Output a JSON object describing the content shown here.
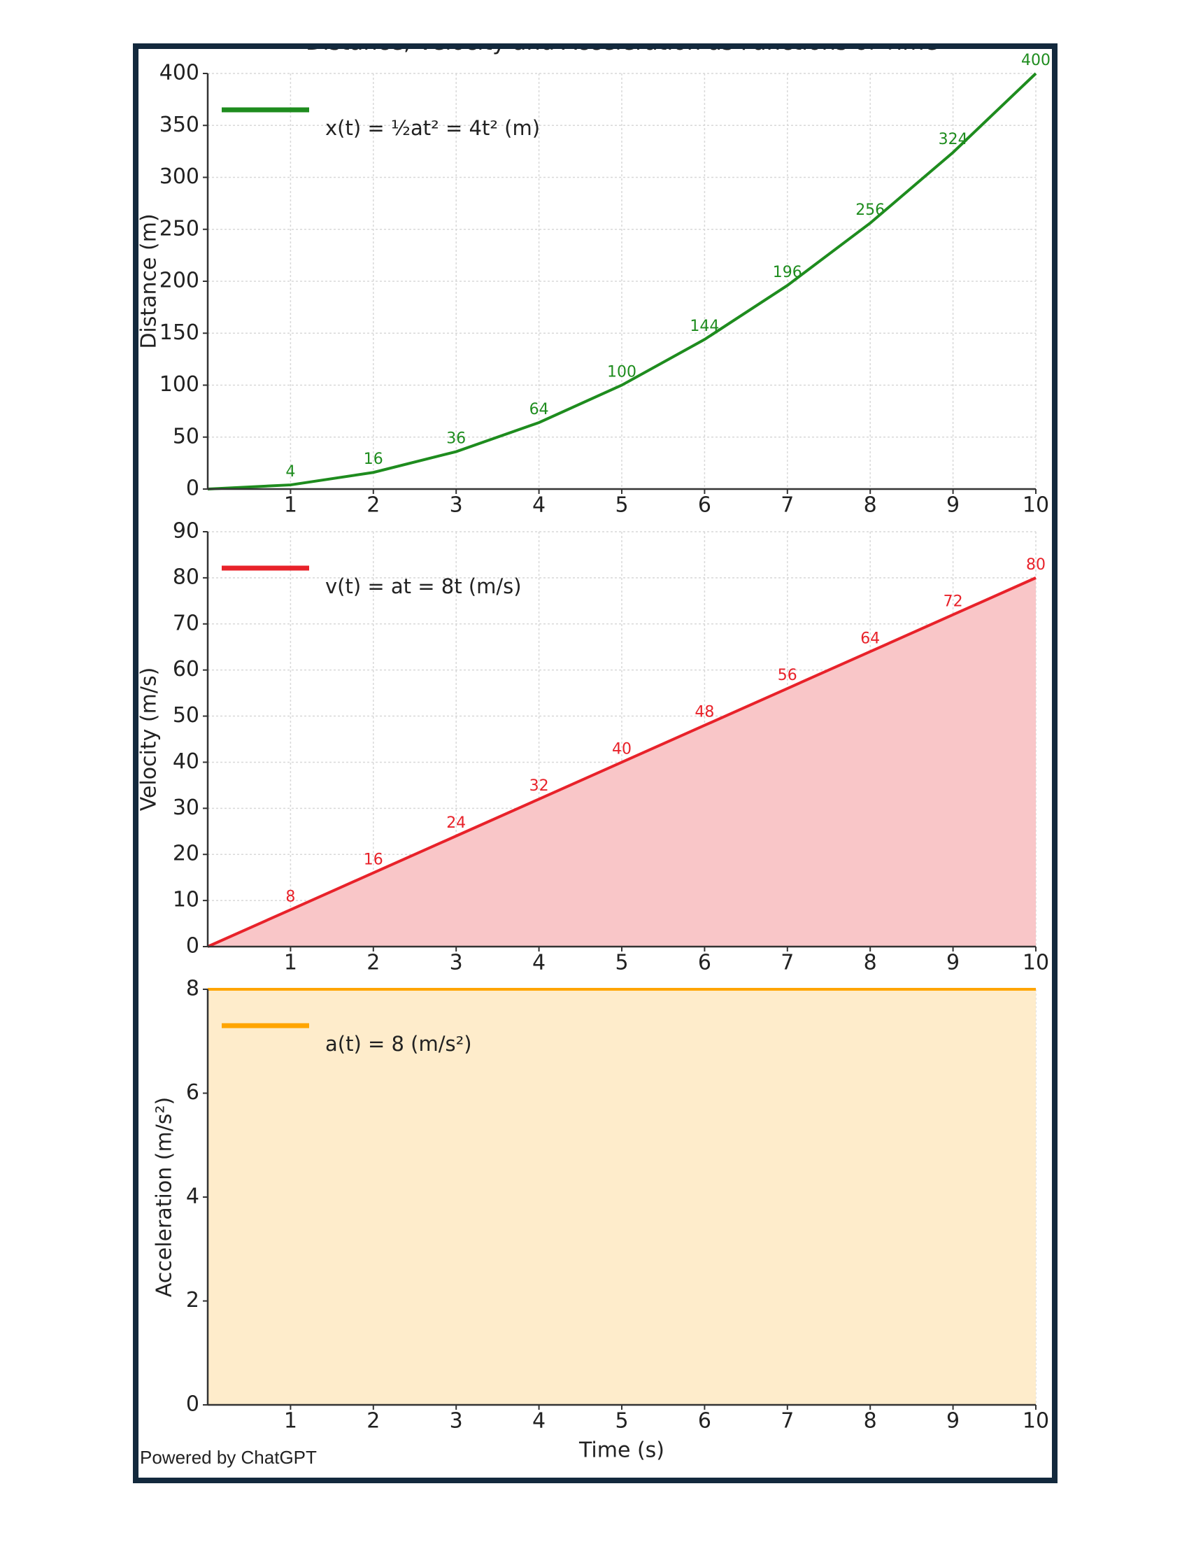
{
  "title": "Distance, Velocity and Acceleration as Functions of Time",
  "footer": "Powered by ChatGPT",
  "chart_data": [
    {
      "type": "line",
      "ylabel": "Distance (m)",
      "x": [
        0,
        1,
        2,
        3,
        4,
        5,
        6,
        7,
        8,
        9,
        10
      ],
      "xlim": [
        0,
        10
      ],
      "xticks": [
        1,
        2,
        3,
        4,
        5,
        6,
        7,
        8,
        9,
        10
      ],
      "ylim": [
        0,
        400
      ],
      "yticks": [
        0,
        50,
        100,
        150,
        200,
        250,
        300,
        350,
        400
      ],
      "grid": true,
      "legend": "upper left",
      "series": [
        {
          "name": "x(t) = ½at² = 4t² (m)",
          "color": "#1e8c1e",
          "data_labels": true,
          "values": [
            0,
            4,
            16,
            36,
            64,
            100,
            144,
            196,
            256,
            324,
            400
          ]
        }
      ]
    },
    {
      "type": "area",
      "ylabel": "Velocity (m/s)",
      "x": [
        0,
        1,
        2,
        3,
        4,
        5,
        6,
        7,
        8,
        9,
        10
      ],
      "xlim": [
        0,
        10
      ],
      "xticks": [
        1,
        2,
        3,
        4,
        5,
        6,
        7,
        8,
        9,
        10
      ],
      "ylim": [
        0,
        90
      ],
      "yticks": [
        0,
        10,
        20,
        30,
        40,
        50,
        60,
        70,
        80,
        90
      ],
      "grid": true,
      "legend": "upper left",
      "series": [
        {
          "name": "v(t) = at = 8t (m/s)",
          "color": "#e8222a",
          "fill": "#f9c6c8",
          "data_labels": true,
          "values": [
            0,
            8,
            16,
            24,
            32,
            40,
            48,
            56,
            64,
            72,
            80
          ]
        }
      ]
    },
    {
      "type": "area",
      "ylabel": "Acceleration (m/s²)",
      "xlabel": "Time (s)",
      "x": [
        0,
        1,
        2,
        3,
        4,
        5,
        6,
        7,
        8,
        9,
        10
      ],
      "xlim": [
        0,
        10
      ],
      "xticks": [
        1,
        2,
        3,
        4,
        5,
        6,
        7,
        8,
        9,
        10
      ],
      "ylim": [
        0,
        8
      ],
      "yticks": [
        0,
        2,
        4,
        6,
        8
      ],
      "grid": true,
      "legend": "upper left",
      "series": [
        {
          "name": "a(t) = 8 (m/s²)",
          "color": "#ffa500",
          "fill": "#feeccb",
          "data_labels": false,
          "values": [
            8,
            8,
            8,
            8,
            8,
            8,
            8,
            8,
            8,
            8,
            8
          ]
        }
      ]
    }
  ]
}
